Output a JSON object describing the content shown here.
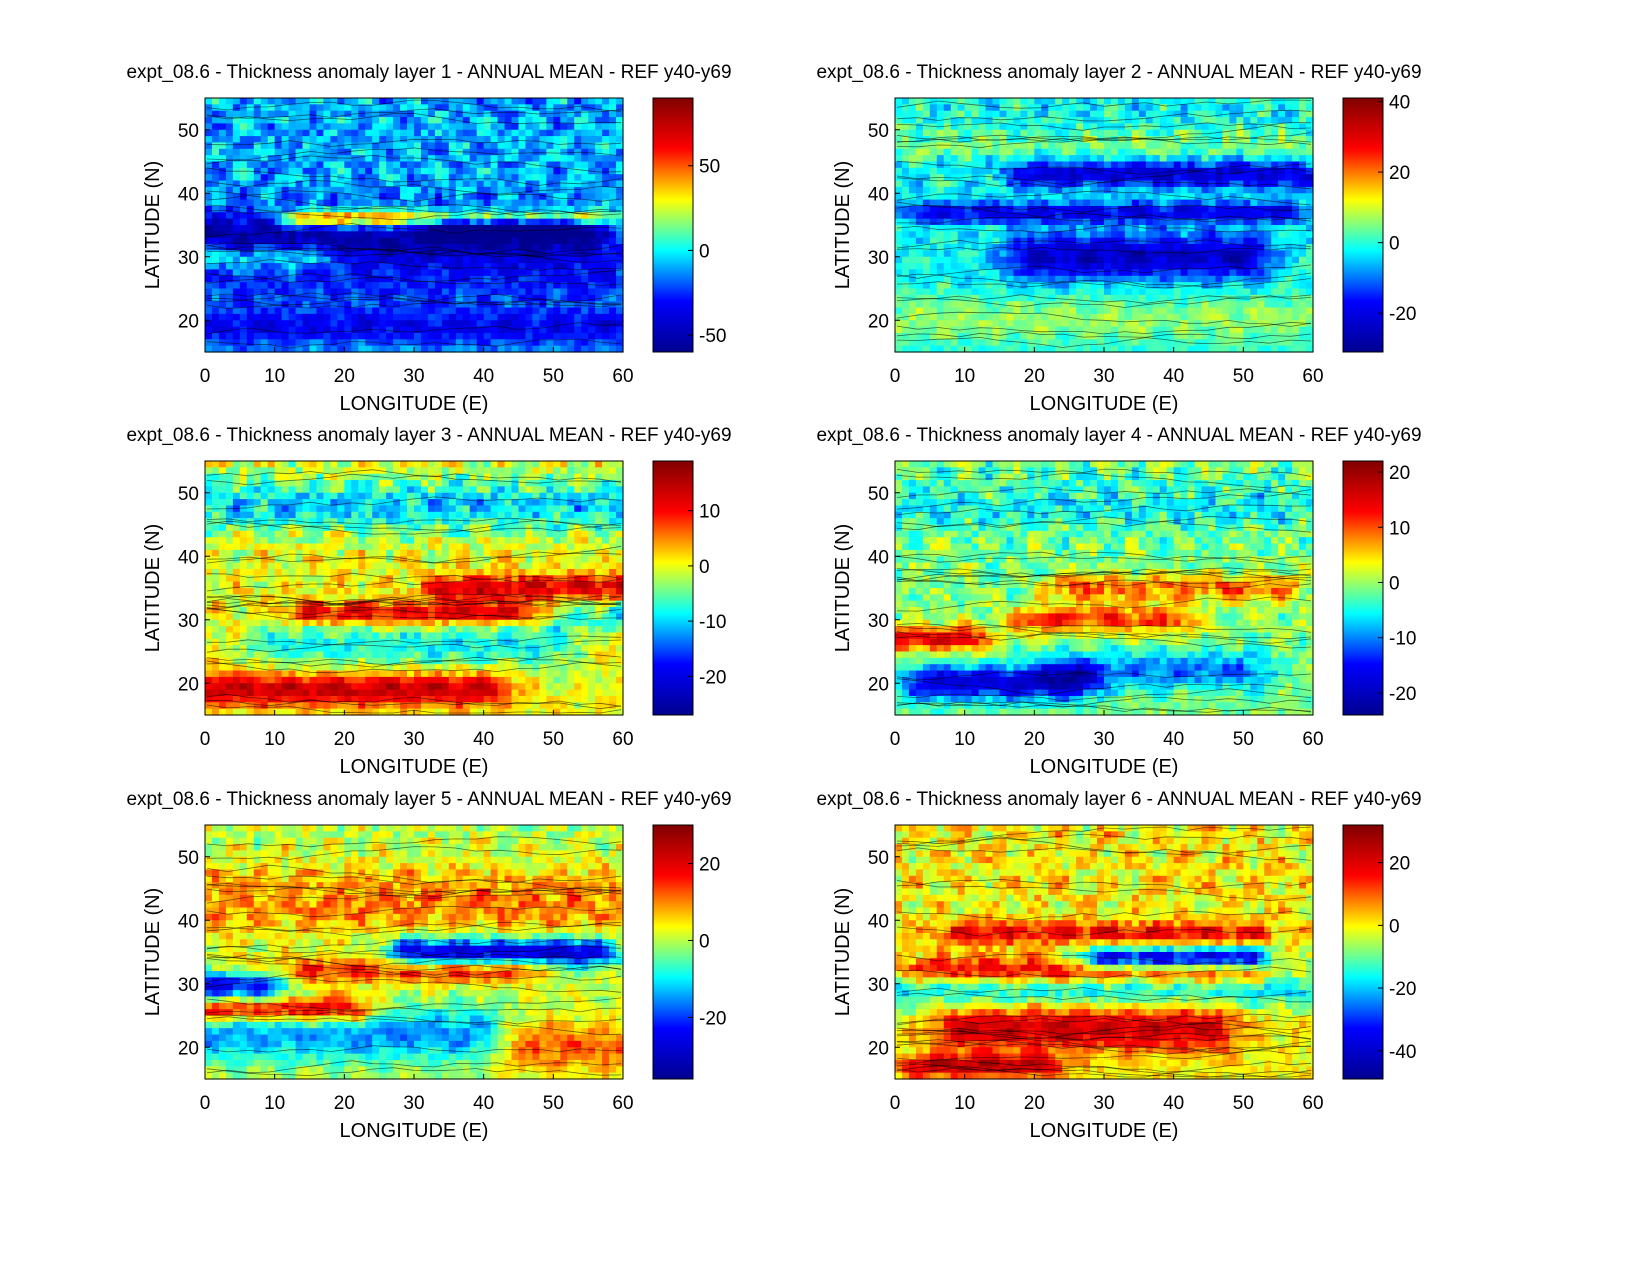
{
  "figure": {
    "background": "#ffffff",
    "colormap": "jet",
    "colormap_stops": [
      "#00008f",
      "#0000ff",
      "#00ffff",
      "#ffff00",
      "#ff0000",
      "#800000"
    ]
  },
  "chart_data": [
    {
      "type": "heatmap",
      "title": "expt_08.6 - Thickness anomaly layer 1 - ANNUAL MEAN - REF y40-y69",
      "xlabel": "LONGITUDE (E)",
      "ylabel": "LATITUDE (N)",
      "xlim": [
        0,
        60
      ],
      "ylim": [
        15,
        55
      ],
      "xticks": [
        0,
        10,
        20,
        30,
        40,
        50,
        60
      ],
      "yticks": [
        20,
        30,
        40,
        50
      ],
      "colorbar": {
        "clim": [
          -60,
          90
        ],
        "ticks": [
          -50,
          0,
          50
        ]
      },
      "features": [
        {
          "lon0": 0,
          "lon1": 55,
          "lat": 33,
          "w": 3,
          "value": -45
        },
        {
          "lon0": 15,
          "lon1": 55,
          "lat": 36,
          "w": 1,
          "value": 80
        },
        {
          "lon0": 35,
          "lon1": 52,
          "lat": 35,
          "w": 1.2,
          "value": -55
        },
        {
          "lon0": 0,
          "lon1": 15,
          "lat": 30,
          "w": 1.5,
          "value": 35
        },
        {
          "lon0": 0,
          "lon1": 58,
          "lat": 26,
          "w": 2.5,
          "value": -15
        },
        {
          "lon0": 0,
          "lon1": 58,
          "lat": 19,
          "w": 2,
          "value": -25
        }
      ],
      "base_value": -10,
      "noise": 22
    },
    {
      "type": "heatmap",
      "title": "expt_08.6 - Thickness anomaly layer 2 - ANNUAL MEAN - REF y40-y69",
      "xlabel": "LONGITUDE (E)",
      "ylabel": "LATITUDE (N)",
      "xlim": [
        0,
        60
      ],
      "ylim": [
        15,
        55
      ],
      "xticks": [
        0,
        10,
        20,
        30,
        40,
        50,
        60
      ],
      "yticks": [
        20,
        30,
        40,
        50
      ],
      "colorbar": {
        "clim": [
          -31,
          41
        ],
        "ticks": [
          -20,
          0,
          20,
          40
        ]
      },
      "features": [
        {
          "lon0": 20,
          "lon1": 50,
          "lat": 30,
          "w": 2.5,
          "value": -22
        },
        {
          "lon0": 5,
          "lon1": 55,
          "lat": 37,
          "w": 1.2,
          "value": -18
        },
        {
          "lon0": 20,
          "lon1": 58,
          "lat": 43,
          "w": 1.5,
          "value": -20
        },
        {
          "lon0": 0,
          "lon1": 60,
          "lat": 20,
          "w": 3,
          "value": 8
        },
        {
          "lon0": 0,
          "lon1": 60,
          "lat": 48,
          "w": 2,
          "value": 6
        }
      ],
      "base_value": -2,
      "noise": 9
    },
    {
      "type": "heatmap",
      "title": "expt_08.6 - Thickness anomaly layer 3 - ANNUAL MEAN - REF y40-y69",
      "xlabel": "LONGITUDE (E)",
      "ylabel": "LATITUDE (N)",
      "xlim": [
        0,
        60
      ],
      "ylim": [
        15,
        55
      ],
      "xticks": [
        0,
        10,
        20,
        30,
        40,
        50,
        60
      ],
      "yticks": [
        20,
        30,
        40,
        50
      ],
      "colorbar": {
        "clim": [
          -27,
          19
        ],
        "ticks": [
          -20,
          -10,
          0,
          10
        ]
      },
      "features": [
        {
          "lon0": 0,
          "lon1": 40,
          "lat": 19,
          "w": 1.8,
          "value": 14
        },
        {
          "lon0": 15,
          "lon1": 55,
          "lat": 31,
          "w": 1.2,
          "value": 12
        },
        {
          "lon0": 35,
          "lon1": 60,
          "lat": 35,
          "w": 1.5,
          "value": 13
        },
        {
          "lon0": 10,
          "lon1": 50,
          "lat": 26,
          "w": 2.5,
          "value": -8
        },
        {
          "lon0": 0,
          "lon1": 60,
          "lat": 48,
          "w": 3,
          "value": -10
        },
        {
          "lon0": 52,
          "lon1": 60,
          "lat": 31,
          "w": 1.5,
          "value": -16
        }
      ],
      "base_value": 0,
      "noise": 7
    },
    {
      "type": "heatmap",
      "title": "expt_08.6 - Thickness anomaly layer 4 - ANNUAL MEAN - REF y40-y69",
      "xlabel": "LONGITUDE (E)",
      "ylabel": "LATITUDE (N)",
      "xlim": [
        0,
        60
      ],
      "ylim": [
        15,
        55
      ],
      "xticks": [
        0,
        10,
        20,
        30,
        40,
        50,
        60
      ],
      "yticks": [
        20,
        30,
        40,
        50
      ],
      "colorbar": {
        "clim": [
          -24,
          22
        ],
        "ticks": [
          -20,
          -10,
          0,
          10,
          20
        ]
      },
      "features": [
        {
          "lon0": 0,
          "lon1": 10,
          "lat": 27,
          "w": 1.5,
          "value": 15
        },
        {
          "lon0": 20,
          "lon1": 40,
          "lat": 30,
          "w": 1.5,
          "value": 12
        },
        {
          "lon0": 25,
          "lon1": 55,
          "lat": 35,
          "w": 1.5,
          "value": 10
        },
        {
          "lon0": 5,
          "lon1": 25,
          "lat": 20,
          "w": 2,
          "value": -17
        },
        {
          "lon0": 25,
          "lon1": 50,
          "lat": 22,
          "w": 2,
          "value": -10
        },
        {
          "lon0": 0,
          "lon1": 60,
          "lat": 48,
          "w": 3,
          "value": -4
        }
      ],
      "base_value": -1,
      "noise": 7
    },
    {
      "type": "heatmap",
      "title": "expt_08.6 - Thickness anomaly layer 5 - ANNUAL MEAN - REF y40-y69",
      "xlabel": "LONGITUDE (E)",
      "ylabel": "LATITUDE (N)",
      "xlim": [
        0,
        60
      ],
      "ylim": [
        15,
        55
      ],
      "xticks": [
        0,
        10,
        20,
        30,
        40,
        50,
        60
      ],
      "yticks": [
        20,
        30,
        40,
        50
      ],
      "colorbar": {
        "clim": [
          -36,
          30
        ],
        "ticks": [
          -20,
          0,
          20
        ]
      },
      "features": [
        {
          "lon0": 0,
          "lon1": 20,
          "lat": 26,
          "w": 1.5,
          "value": 24
        },
        {
          "lon0": 5,
          "lon1": 45,
          "lat": 32,
          "w": 1.5,
          "value": 15
        },
        {
          "lon0": 30,
          "lon1": 55,
          "lat": 35,
          "w": 1.5,
          "value": -30
        },
        {
          "lon0": 0,
          "lon1": 8,
          "lat": 30,
          "w": 2,
          "value": -28
        },
        {
          "lon0": 0,
          "lon1": 40,
          "lat": 22,
          "w": 3,
          "value": -15
        },
        {
          "lon0": 45,
          "lon1": 60,
          "lat": 20,
          "w": 3,
          "value": 12
        },
        {
          "lon0": 0,
          "lon1": 60,
          "lat": 43,
          "w": 4,
          "value": 10
        }
      ],
      "base_value": 0,
      "noise": 9
    },
    {
      "type": "heatmap",
      "title": "expt_08.6 - Thickness anomaly layer 6 - ANNUAL MEAN - REF y40-y69",
      "xlabel": "LONGITUDE (E)",
      "ylabel": "LATITUDE (N)",
      "xlim": [
        0,
        60
      ],
      "ylim": [
        15,
        55
      ],
      "xticks": [
        0,
        10,
        20,
        30,
        40,
        50,
        60
      ],
      "yticks": [
        20,
        30,
        40,
        50
      ],
      "colorbar": {
        "clim": [
          -49,
          32
        ],
        "ticks": [
          -40,
          -20,
          0,
          20
        ]
      },
      "features": [
        {
          "lon0": 10,
          "lon1": 45,
          "lat": 23,
          "w": 2.5,
          "value": 22
        },
        {
          "lon0": 5,
          "lon1": 50,
          "lat": 32,
          "w": 1.5,
          "value": 20
        },
        {
          "lon0": 30,
          "lon1": 50,
          "lat": 34,
          "w": 1.2,
          "value": -42
        },
        {
          "lon0": 10,
          "lon1": 50,
          "lat": 38,
          "w": 1.2,
          "value": 18
        },
        {
          "lon0": 0,
          "lon1": 60,
          "lat": 29,
          "w": 2,
          "value": -18
        },
        {
          "lon0": 5,
          "lon1": 20,
          "lat": 17,
          "w": 1.2,
          "value": 24
        }
      ],
      "base_value": 0,
      "noise": 12
    }
  ]
}
